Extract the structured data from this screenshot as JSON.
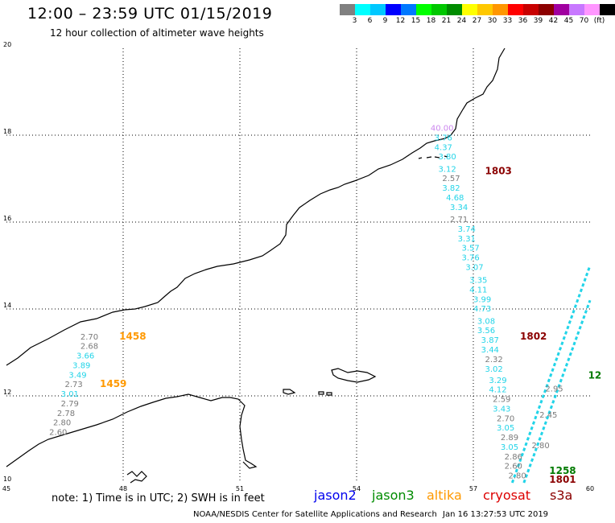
{
  "title": "12:00 – 23:59 UTC 01/15/2019",
  "subtitle": "12 hour collection of altimeter wave heights",
  "legend": {
    "colors": [
      "#808080",
      "#00ffff",
      "#00c8ff",
      "#0000ff",
      "#0078ff",
      "#00ff00",
      "#00c800",
      "#008c00",
      "#ffff00",
      "#ffc800",
      "#ff9600",
      "#ff0000",
      "#c80000",
      "#8c0000",
      "#a000a0",
      "#c878ff",
      "#ff96ff",
      "#000000"
    ],
    "labels": [
      "3",
      "6",
      "9",
      "12",
      "15",
      "18",
      "21",
      "24",
      "27",
      "30",
      "33",
      "36",
      "39",
      "42",
      "45",
      "70",
      "(ft)"
    ]
  },
  "axes": {
    "x_ticks": [
      "45",
      "48",
      "51",
      "54",
      "57",
      "60"
    ],
    "y_ticks": [
      "20",
      "18",
      "16",
      "14",
      "12",
      "10"
    ]
  },
  "colors": {
    "grey": "#7a7a7a",
    "cyan": "#22d4e8",
    "orange": "#ff9900",
    "darkred": "#8b0000",
    "violet": "#cc88ee",
    "green": "#007a00"
  },
  "tracks": [
    {
      "id": "track-altika-west",
      "time_labels": [
        {
          "text": "1458",
          "color": "orange",
          "lon": 47.9,
          "lat": 13.3
        },
        {
          "text": "1459",
          "color": "orange",
          "lon": 47.4,
          "lat": 12.2
        }
      ],
      "points": [
        {
          "text": "2.70",
          "color": "grey",
          "lon": 46.9,
          "lat": 13.3
        },
        {
          "text": "2.68",
          "color": "grey",
          "lon": 46.9,
          "lat": 13.08
        },
        {
          "text": "3.66",
          "color": "cyan",
          "lon": 46.8,
          "lat": 12.86
        },
        {
          "text": "3.89",
          "color": "cyan",
          "lon": 46.7,
          "lat": 12.64
        },
        {
          "text": "3.49",
          "color": "cyan",
          "lon": 46.6,
          "lat": 12.42
        },
        {
          "text": "2.73",
          "color": "grey",
          "lon": 46.5,
          "lat": 12.2
        },
        {
          "text": "3.01",
          "color": "cyan",
          "lon": 46.4,
          "lat": 11.98
        },
        {
          "text": "2.79",
          "color": "grey",
          "lon": 46.4,
          "lat": 11.76
        },
        {
          "text": "2.78",
          "color": "grey",
          "lon": 46.3,
          "lat": 11.54
        },
        {
          "text": "2.80",
          "color": "grey",
          "lon": 46.2,
          "lat": 11.32
        },
        {
          "text": "2.60",
          "color": "grey",
          "lon": 46.1,
          "lat": 11.1
        }
      ]
    },
    {
      "id": "track-cryosat-east",
      "time_labels": [
        {
          "text": "1803",
          "color": "darkred",
          "lon": 57.3,
          "lat": 17.1
        },
        {
          "text": "1802",
          "color": "darkred",
          "lon": 58.2,
          "lat": 13.3
        }
      ],
      "points": [
        {
          "text": "40.00",
          "color": "violet",
          "lon": 55.9,
          "lat": 18.1
        },
        {
          "text": "3.76",
          "color": "cyan",
          "lon": 56.0,
          "lat": 17.88
        },
        {
          "text": "4.37",
          "color": "cyan",
          "lon": 56.0,
          "lat": 17.66
        },
        {
          "text": "3.80",
          "color": "cyan",
          "lon": 56.1,
          "lat": 17.44
        },
        {
          "text": "3.12",
          "color": "cyan",
          "lon": 56.1,
          "lat": 17.16
        },
        {
          "text": "2.57",
          "color": "grey",
          "lon": 56.2,
          "lat": 16.94
        },
        {
          "text": "3.82",
          "color": "cyan",
          "lon": 56.2,
          "lat": 16.72
        },
        {
          "text": "4.68",
          "color": "cyan",
          "lon": 56.3,
          "lat": 16.5
        },
        {
          "text": "3.34",
          "color": "cyan",
          "lon": 56.4,
          "lat": 16.28
        },
        {
          "text": "2.71",
          "color": "grey",
          "lon": 56.4,
          "lat": 16.0
        },
        {
          "text": "3.74",
          "color": "cyan",
          "lon": 56.6,
          "lat": 15.78
        },
        {
          "text": "3.31",
          "color": "cyan",
          "lon": 56.6,
          "lat": 15.56
        },
        {
          "text": "3.57",
          "color": "cyan",
          "lon": 56.7,
          "lat": 15.34
        },
        {
          "text": "3.76",
          "color": "cyan",
          "lon": 56.7,
          "lat": 15.12
        },
        {
          "text": "3.07",
          "color": "cyan",
          "lon": 56.8,
          "lat": 14.9
        },
        {
          "text": "3.35",
          "color": "cyan",
          "lon": 56.9,
          "lat": 14.6
        },
        {
          "text": "4.11",
          "color": "cyan",
          "lon": 56.9,
          "lat": 14.38
        },
        {
          "text": "3.99",
          "color": "cyan",
          "lon": 57.0,
          "lat": 14.16
        },
        {
          "text": "4.73",
          "color": "cyan",
          "lon": 57.0,
          "lat": 13.94
        },
        {
          "text": "3.08",
          "color": "cyan",
          "lon": 57.1,
          "lat": 13.66
        },
        {
          "text": "3.56",
          "color": "cyan",
          "lon": 57.1,
          "lat": 13.44
        },
        {
          "text": "3.87",
          "color": "cyan",
          "lon": 57.2,
          "lat": 13.22
        },
        {
          "text": "3.44",
          "color": "cyan",
          "lon": 57.2,
          "lat": 13.0
        },
        {
          "text": "2.32",
          "color": "grey",
          "lon": 57.3,
          "lat": 12.78
        },
        {
          "text": "3.02",
          "color": "cyan",
          "lon": 57.3,
          "lat": 12.56
        },
        {
          "text": "3.29",
          "color": "cyan",
          "lon": 57.4,
          "lat": 12.3
        },
        {
          "text": "4.12",
          "color": "cyan",
          "lon": 57.4,
          "lat": 12.08
        },
        {
          "text": "2.59",
          "color": "grey",
          "lon": 57.5,
          "lat": 11.86
        },
        {
          "text": "3.43",
          "color": "cyan",
          "lon": 57.5,
          "lat": 11.64
        },
        {
          "text": "2.70",
          "color": "grey",
          "lon": 57.6,
          "lat": 11.42
        },
        {
          "text": "3.05",
          "color": "cyan",
          "lon": 57.6,
          "lat": 11.2
        },
        {
          "text": "2.89",
          "color": "grey",
          "lon": 57.7,
          "lat": 10.98
        },
        {
          "text": "3.05",
          "color": "cyan",
          "lon": 57.7,
          "lat": 10.76
        },
        {
          "text": "2.86",
          "color": "grey",
          "lon": 57.8,
          "lat": 10.54
        },
        {
          "text": "2.60",
          "color": "grey",
          "lon": 57.8,
          "lat": 10.32
        },
        {
          "text": "2.80",
          "color": "grey",
          "lon": 57.9,
          "lat": 10.1
        }
      ]
    },
    {
      "id": "track-far-east",
      "time_labels": [
        {
          "text": "12",
          "color": "green",
          "lon": 59.95,
          "lat": 12.4
        },
        {
          "text": "1258",
          "color": "green",
          "lon": 58.95,
          "lat": 10.2
        },
        {
          "text": "1801",
          "color": "darkred",
          "lon": 58.95,
          "lat": 10.0
        }
      ],
      "points": [
        {
          "text": "2.95",
          "color": "grey",
          "lon": 58.85,
          "lat": 12.1
        },
        {
          "text": "2.45",
          "color": "grey",
          "lon": 58.7,
          "lat": 11.5
        },
        {
          "text": "2.80",
          "color": "grey",
          "lon": 58.5,
          "lat": 10.8
        }
      ]
    }
  ],
  "footer": {
    "note": "note: 1) Time is in UTC; 2) SWH is in feet",
    "satellites": [
      {
        "name": "jason2",
        "color": "#0000ee"
      },
      {
        "name": "jason3",
        "color": "#008c00"
      },
      {
        "name": "altika",
        "color": "#ff9900"
      },
      {
        "name": "cryosat",
        "color": "#dd0000"
      },
      {
        "name": "s3a",
        "color": "#8b0000"
      }
    ],
    "credit": "NOAA/NESDIS Center for Satellite Applications and Research",
    "timestamp": "Jan 16 13:27:53 UTC 2019"
  }
}
